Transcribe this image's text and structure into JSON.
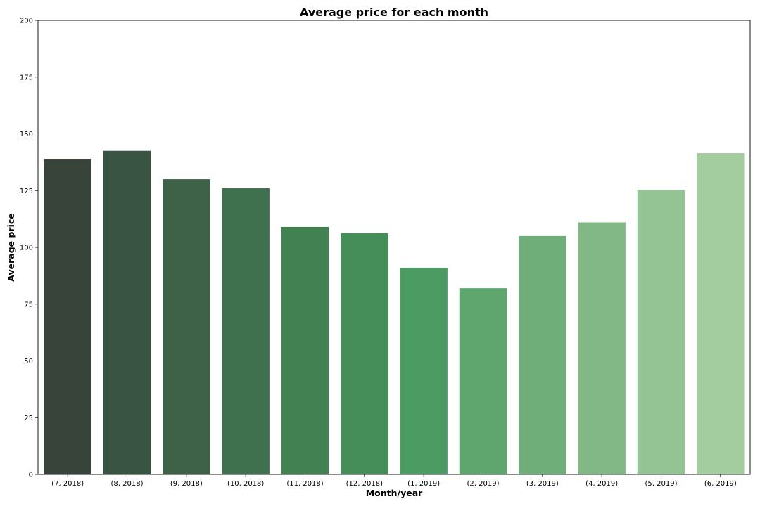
{
  "chart_data": {
    "type": "bar",
    "title": "Average price for each month",
    "xlabel": "Month/year",
    "ylabel": "Average price",
    "categories": [
      "(7, 2018)",
      "(8, 2018)",
      "(9, 2018)",
      "(10, 2018)",
      "(11, 2018)",
      "(12, 2018)",
      "(1, 2019)",
      "(2, 2019)",
      "(3, 2019)",
      "(4, 2019)",
      "(5, 2019)",
      "(6, 2019)"
    ],
    "values": [
      139,
      142.5,
      130,
      126,
      109,
      106.2,
      91,
      82,
      105,
      111,
      125.3,
      141.5
    ],
    "ylim": [
      0,
      200
    ],
    "yticks": [
      0,
      25,
      50,
      75,
      100,
      125,
      150,
      175,
      200
    ],
    "grid": false,
    "colors": [
      "#384339",
      "#3a5443",
      "#3d6248",
      "#3f714e",
      "#428152",
      "#468e59",
      "#4c9b62",
      "#5ea56e",
      "#6fae79",
      "#81b886",
      "#95c494",
      "#a4cd9f"
    ]
  }
}
